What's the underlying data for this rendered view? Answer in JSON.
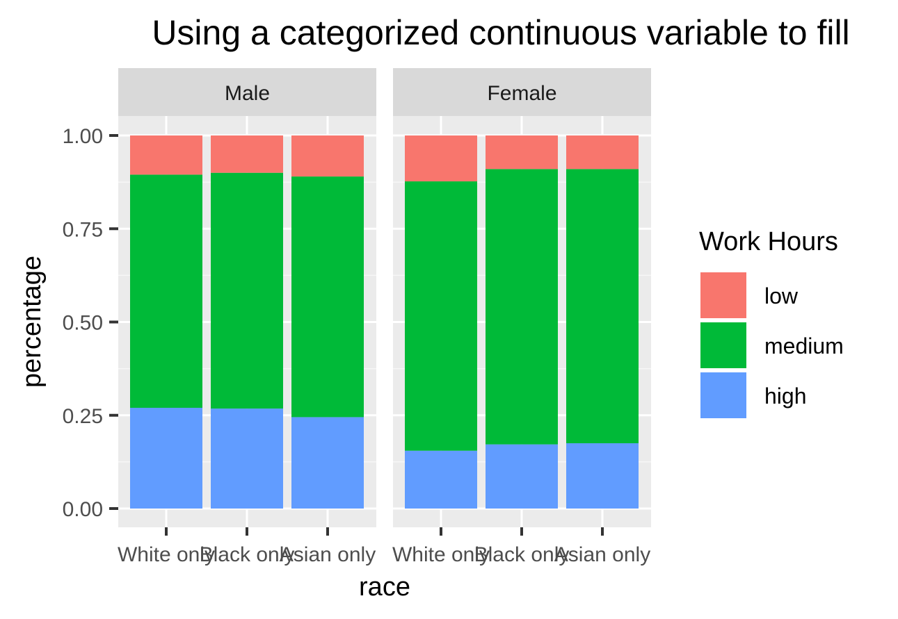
{
  "chart_data": {
    "type": "bar",
    "stacked": true,
    "title": "Using a categorized continuous variable to fill",
    "xlabel": "race",
    "ylabel": "percentage",
    "ylim": [
      0,
      1
    ],
    "y_ticks": [
      "0.00",
      "0.25",
      "0.50",
      "0.75",
      "1.00"
    ],
    "categories": [
      "White only",
      "Black only",
      "Asian only"
    ],
    "legend": {
      "title": "Work Hours",
      "position": "right",
      "entries": [
        {
          "label": "low",
          "color": "#F8766D"
        },
        {
          "label": "medium",
          "color": "#00BA38"
        },
        {
          "label": "high",
          "color": "#619CFF"
        }
      ]
    },
    "facets": [
      {
        "label": "Male",
        "series": [
          {
            "name": "high",
            "values": [
              0.27,
              0.268,
              0.245
            ]
          },
          {
            "name": "medium",
            "values": [
              0.625,
              0.632,
              0.645
            ]
          },
          {
            "name": "low",
            "values": [
              0.105,
              0.1,
              0.11
            ]
          }
        ]
      },
      {
        "label": "Female",
        "series": [
          {
            "name": "high",
            "values": [
              0.155,
              0.172,
              0.175
            ]
          },
          {
            "name": "medium",
            "values": [
              0.722,
              0.738,
              0.735
            ]
          },
          {
            "name": "low",
            "values": [
              0.123,
              0.09,
              0.09
            ]
          }
        ]
      }
    ],
    "grid": true
  }
}
